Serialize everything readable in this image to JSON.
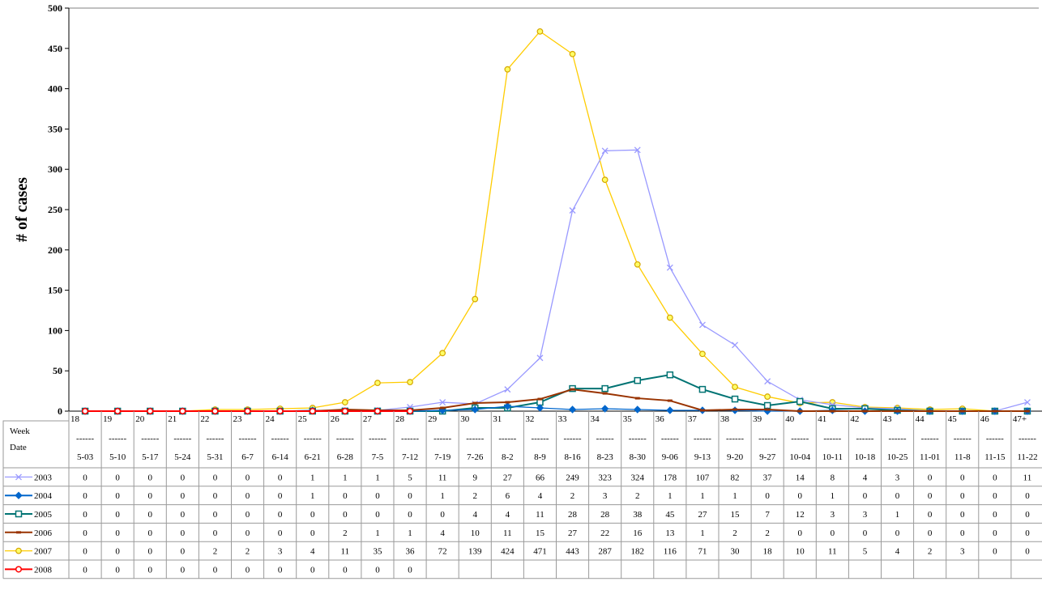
{
  "chart_data": {
    "type": "line",
    "ylabel": "# of cases",
    "ylim": [
      0,
      500
    ],
    "yticks": [
      0,
      50,
      100,
      150,
      200,
      250,
      300,
      350,
      400,
      450,
      500
    ],
    "header_label_week": "Week",
    "header_label_date": "Date",
    "separator": "------",
    "weeks": [
      "18",
      "19",
      "20",
      "21",
      "22",
      "23",
      "24",
      "25",
      "26",
      "27",
      "28",
      "29",
      "30",
      "31",
      "32",
      "33",
      "34",
      "35",
      "36",
      "37",
      "38",
      "39",
      "40",
      "41",
      "42",
      "43",
      "44",
      "45",
      "46",
      "47+"
    ],
    "dates": [
      "5-03",
      "5-10",
      "5-17",
      "5-24",
      "5-31",
      "6-7",
      "6-14",
      "6-21",
      "6-28",
      "7-5",
      "7-12",
      "7-19",
      "7-26",
      "8-2",
      "8-9",
      "8-16",
      "8-23",
      "8-30",
      "9-06",
      "9-13",
      "9-20",
      "9-27",
      "10-04",
      "10-11",
      "10-18",
      "10-25",
      "11-01",
      "11-8",
      "11-15",
      "11-22"
    ],
    "series": [
      {
        "name": "2003",
        "color": "#9999ff",
        "marker": "x",
        "values": [
          0,
          0,
          0,
          0,
          0,
          0,
          0,
          1,
          1,
          1,
          5,
          11,
          9,
          27,
          66,
          249,
          323,
          324,
          178,
          107,
          82,
          37,
          14,
          8,
          4,
          3,
          0,
          0,
          0,
          11
        ]
      },
      {
        "name": "2004",
        "color": "#0066cc",
        "marker": "diamond",
        "values": [
          0,
          0,
          0,
          0,
          0,
          0,
          0,
          1,
          0,
          0,
          0,
          1,
          2,
          6,
          4,
          2,
          3,
          2,
          1,
          1,
          1,
          0,
          0,
          1,
          0,
          0,
          0,
          0,
          0,
          0
        ]
      },
      {
        "name": "2005",
        "color": "#007373",
        "marker": "square",
        "values": [
          0,
          0,
          0,
          0,
          0,
          0,
          0,
          0,
          0,
          0,
          0,
          0,
          4,
          4,
          11,
          28,
          28,
          38,
          45,
          27,
          15,
          7,
          12,
          3,
          3,
          1,
          0,
          0,
          0,
          0
        ]
      },
      {
        "name": "2006",
        "color": "#993300",
        "marker": "dash",
        "values": [
          0,
          0,
          0,
          0,
          0,
          0,
          0,
          0,
          2,
          1,
          1,
          4,
          10,
          11,
          15,
          27,
          22,
          16,
          13,
          1,
          2,
          2,
          0,
          0,
          0,
          0,
          0,
          0,
          0,
          0
        ]
      },
      {
        "name": "2007",
        "color": "#ffcc00",
        "marker": "circle-yellow",
        "values": [
          0,
          0,
          0,
          0,
          2,
          2,
          3,
          4,
          11,
          35,
          36,
          72,
          139,
          424,
          471,
          443,
          287,
          182,
          116,
          71,
          30,
          18,
          10,
          11,
          5,
          4,
          2,
          3,
          0,
          0
        ]
      },
      {
        "name": "2008",
        "color": "#ff0000",
        "marker": "circle-red",
        "values": [
          0,
          0,
          0,
          0,
          0,
          0,
          0,
          0,
          0,
          0,
          0,
          null,
          null,
          null,
          null,
          null,
          null,
          null,
          null,
          null,
          null,
          null,
          null,
          null,
          null,
          null,
          null,
          null,
          null,
          null
        ]
      }
    ]
  }
}
